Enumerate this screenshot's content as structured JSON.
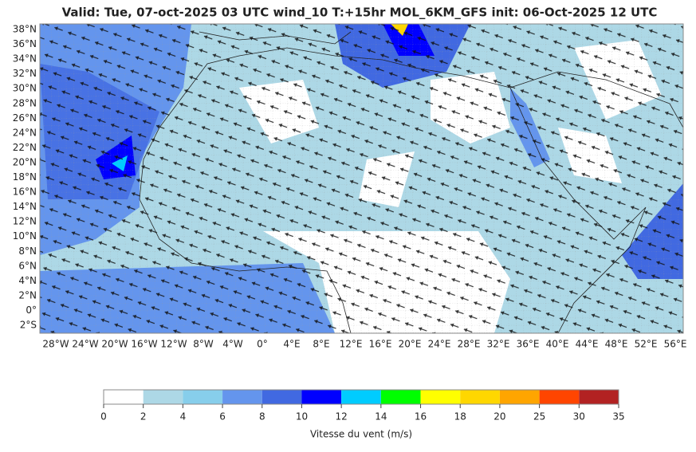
{
  "map": {
    "title": "Valid: Tue, 07-oct-2025   03 UTC   wind_10   T:+15hr   MOL_6KM_GFS   init: 06-Oct-2025    12 UTC",
    "lat_labels": [
      "38°N",
      "36°N",
      "34°N",
      "32°N",
      "30°N",
      "28°N",
      "26°N",
      "24°N",
      "22°N",
      "20°N",
      "18°N",
      "16°N",
      "14°N",
      "12°N",
      "10°N",
      "8°N",
      "6°N",
      "4°N",
      "2°N",
      "0°",
      "2°S"
    ],
    "lon_labels": [
      "28°W",
      "24°W",
      "20°W",
      "16°W",
      "12°W",
      "8°W",
      "4°W",
      "0°",
      "4°E",
      "8°E",
      "12°E",
      "16°E",
      "20°E",
      "24°E",
      "28°E",
      "32°E",
      "36°E",
      "40°E",
      "44°E",
      "48°E",
      "52°E",
      "56°E"
    ],
    "colorbar": {
      "ticks": [
        0,
        2,
        4,
        6,
        8,
        10,
        12,
        14,
        16,
        18,
        20,
        25,
        30,
        35
      ],
      "colors": [
        "#ffffff",
        "#add8e6",
        "#87ceeb",
        "#6495ed",
        "#4169e1",
        "#0000ff",
        "#00ccff",
        "#00ff00",
        "#ffff00",
        "#ffd700",
        "#ffa500",
        "#ff4500",
        "#b22222"
      ],
      "label": "Vitesse du vent (m/s)"
    }
  }
}
